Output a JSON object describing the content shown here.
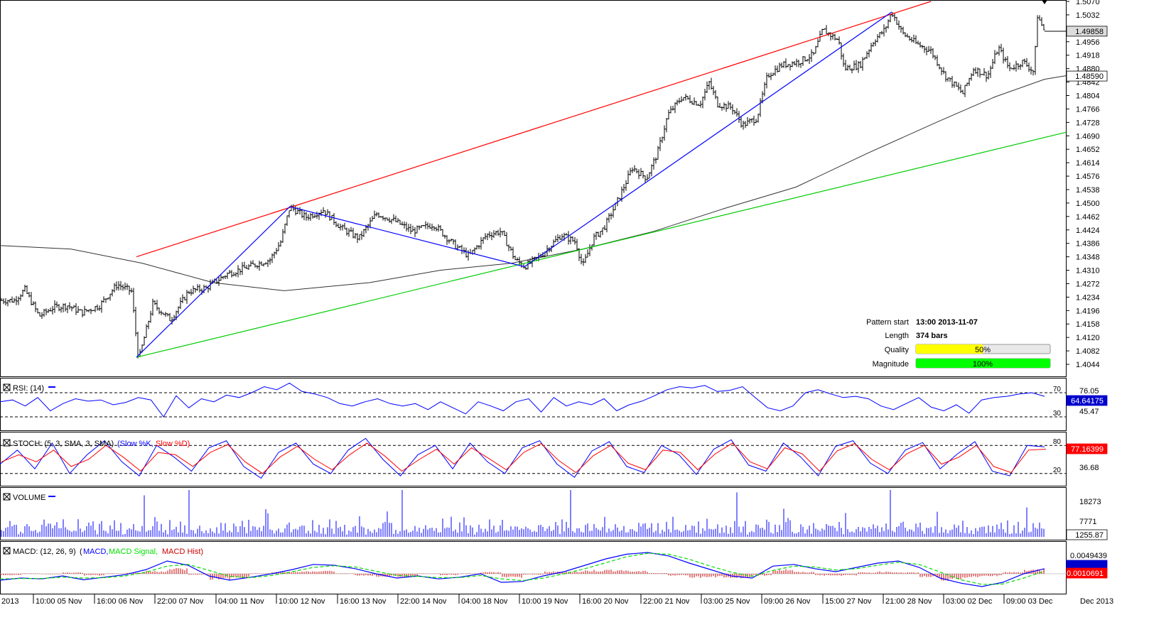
{
  "chart_data": [
    {
      "panel": "price",
      "type": "candlestick",
      "ylim": [
        1.403,
        1.507
      ],
      "y_ticks": [
        "1.5070",
        "1.5032",
        "1.4956",
        "1.4918",
        "1.4880",
        "1.4842",
        "1.4804",
        "1.4766",
        "1.4728",
        "1.4690",
        "1.4652",
        "1.4614",
        "1.4576",
        "1.4538",
        "1.4500",
        "1.4462",
        "1.4424",
        "1.4386",
        "1.4348",
        "1.4310",
        "1.4272",
        "1.4234",
        "1.4196",
        "1.4158",
        "1.4120",
        "1.4082",
        "1.4044"
      ],
      "x_labels": [
        "2013",
        "10:00 05 Nov",
        "16:00 06 Nov",
        "22:00 07 Nov",
        "04:00 11 Nov",
        "10:00 12 Nov",
        "16:00 13 Nov",
        "22:00 14 Nov",
        "04:00 18 Nov",
        "10:00 19 Nov",
        "16:00 20 Nov",
        "22:00 21 Nov",
        "03:00 25 Nov",
        "09:00 26 Nov",
        "15:00 27 Nov",
        "21:00 28 Nov",
        "03:00 02 Dec",
        "09:00 03 Dec",
        "Dec 2013"
      ],
      "price_path": [
        [
          0,
          1.4225
        ],
        [
          20,
          1.4225
        ],
        [
          35,
          1.4255
        ],
        [
          55,
          1.418
        ],
        [
          75,
          1.4205
        ],
        [
          95,
          1.421
        ],
        [
          115,
          1.419
        ],
        [
          140,
          1.421
        ],
        [
          165,
          1.427
        ],
        [
          185,
          1.425
        ],
        [
          195,
          1.4055
        ],
        [
          215,
          1.4215
        ],
        [
          240,
          1.417
        ],
        [
          265,
          1.425
        ],
        [
          290,
          1.426
        ],
        [
          320,
          1.43
        ],
        [
          350,
          1.432
        ],
        [
          380,
          1.434
        ],
        [
          395,
          1.439
        ],
        [
          408,
          1.449
        ],
        [
          430,
          1.446
        ],
        [
          455,
          1.448
        ],
        [
          480,
          1.443
        ],
        [
          505,
          1.44
        ],
        [
          530,
          1.447
        ],
        [
          555,
          1.445
        ],
        [
          580,
          1.442
        ],
        [
          610,
          1.444
        ],
        [
          640,
          1.438
        ],
        [
          660,
          1.435
        ],
        [
          685,
          1.441
        ],
        [
          705,
          1.442
        ],
        [
          725,
          1.434
        ],
        [
          738,
          1.432
        ],
        [
          760,
          1.435
        ],
        [
          790,
          1.441
        ],
        [
          810,
          1.439
        ],
        [
          820,
          1.432
        ],
        [
          835,
          1.44
        ],
        [
          850,
          1.443
        ],
        [
          870,
          1.451
        ],
        [
          890,
          1.46
        ],
        [
          910,
          1.457
        ],
        [
          925,
          1.464
        ],
        [
          940,
          1.475
        ],
        [
          960,
          1.48
        ],
        [
          985,
          1.478
        ],
        [
          998,
          1.484
        ],
        [
          1010,
          1.478
        ],
        [
          1030,
          1.477
        ],
        [
          1045,
          1.472
        ],
        [
          1065,
          1.474
        ],
        [
          1080,
          1.486
        ],
        [
          1100,
          1.489
        ],
        [
          1125,
          1.49
        ],
        [
          1145,
          1.492
        ],
        [
          1158,
          1.499
        ],
        [
          1180,
          1.496
        ],
        [
          1188,
          1.488
        ],
        [
          1210,
          1.489
        ],
        [
          1230,
          1.496
        ],
        [
          1245,
          1.499
        ],
        [
          1255,
          1.504
        ],
        [
          1270,
          1.498
        ],
        [
          1290,
          1.495
        ],
        [
          1310,
          1.493
        ],
        [
          1330,
          1.486
        ],
        [
          1355,
          1.481
        ],
        [
          1370,
          1.488
        ],
        [
          1390,
          1.486
        ],
        [
          1405,
          1.494
        ],
        [
          1420,
          1.488
        ],
        [
          1440,
          1.49
        ],
        [
          1455,
          1.487
        ],
        [
          1460,
          1.503
        ],
        [
          1470,
          1.4986
        ]
      ],
      "moving_average": [
        [
          0,
          1.438
        ],
        [
          100,
          1.437
        ],
        [
          200,
          1.433
        ],
        [
          300,
          1.4275
        ],
        [
          400,
          1.4252
        ],
        [
          520,
          1.4275
        ],
        [
          620,
          1.431
        ],
        [
          720,
          1.433
        ],
        [
          820,
          1.437
        ],
        [
          920,
          1.442
        ],
        [
          1020,
          1.4485
        ],
        [
          1120,
          1.4545
        ],
        [
          1220,
          1.464
        ],
        [
          1320,
          1.473
        ],
        [
          1400,
          1.48
        ],
        [
          1470,
          1.485
        ],
        [
          1500,
          1.486
        ]
      ],
      "trendlines": [
        {
          "color": "#ff0000",
          "points": [
            [
              192,
              1.4348
            ],
            [
              1310,
              1.507
            ]
          ]
        },
        {
          "color": "#00cc00",
          "points": [
            [
              192,
              1.4064
            ],
            [
              1500,
              1.47
            ]
          ]
        },
        {
          "color": "#0000ff",
          "points": [
            [
              192,
              1.4064
            ],
            [
              408,
              1.449
            ],
            [
              738,
              1.432
            ],
            [
              1255,
              1.504
            ]
          ]
        }
      ],
      "price_tags": [
        {
          "label": "1.49858",
          "value": 1.49858
        },
        {
          "label": "1.48590",
          "value": 1.4859
        }
      ],
      "pattern_info": {
        "rows": [
          {
            "label": "Pattern start",
            "value": "13:00 2013-11-07"
          },
          {
            "label": "Length",
            "value": "374 bars"
          },
          {
            "label": "Quality",
            "value": "50%",
            "fraction": 0.5,
            "color": "#ffff00"
          },
          {
            "label": "Magnitude",
            "value": "100%",
            "fraction": 1.0,
            "color": "#00ff00"
          }
        ]
      }
    },
    {
      "panel": "rsi",
      "type": "line",
      "title": "RSI: (14)",
      "ylim": [
        10,
        90
      ],
      "levels": [
        "70",
        "30"
      ],
      "y_ticks": [
        "76.05",
        "45.47"
      ],
      "tag": "64.64175",
      "series": [
        {
          "color": "#0000ff",
          "values": [
            55,
            58,
            48,
            62,
            40,
            52,
            60,
            56,
            58,
            50,
            54,
            62,
            58,
            30,
            65,
            45,
            60,
            55,
            66,
            62,
            70,
            80,
            75,
            86,
            72,
            68,
            62,
            52,
            48,
            55,
            60,
            52,
            48,
            52,
            42,
            55,
            45,
            35,
            55,
            48,
            40,
            55,
            60,
            38,
            62,
            48,
            55,
            50,
            60,
            40,
            50,
            56,
            65,
            75,
            80,
            78,
            82,
            72,
            74,
            80,
            62,
            45,
            40,
            48,
            70,
            75,
            68,
            62,
            64,
            60,
            48,
            42,
            52,
            62,
            46,
            40,
            50,
            36,
            58,
            62,
            64,
            68,
            70,
            64
          ]
        }
      ]
    },
    {
      "panel": "stoch",
      "type": "line",
      "title": "STOCH: (5, 3, SMA, 3, SMA)",
      "legend": [
        "Slow %K",
        "Slow %D"
      ],
      "ylim": [
        0,
        100
      ],
      "levels": [
        "80",
        "20"
      ],
      "y_ticks": [
        "36.68"
      ],
      "tag": "77.16399",
      "series": [
        {
          "name": "Slow %K",
          "color": "#0000ff",
          "values": [
            40,
            70,
            30,
            85,
            20,
            60,
            90,
            45,
            15,
            80,
            55,
            25,
            75,
            90,
            35,
            10,
            65,
            85,
            40,
            20,
            70,
            95,
            50,
            15,
            60,
            80,
            30,
            85,
            45,
            20,
            75,
            90,
            40,
            12,
            68,
            88,
            35,
            22,
            80,
            60,
            18,
            72,
            92,
            38,
            25,
            85,
            55,
            15,
            78,
            90,
            42,
            20,
            70,
            86,
            30,
            62,
            88,
            25,
            15,
            80,
            77
          ]
        },
        {
          "name": "Slow %D",
          "color": "#ff0000",
          "values": [
            45,
            60,
            45,
            70,
            35,
            50,
            80,
            55,
            25,
            65,
            60,
            35,
            65,
            82,
            45,
            20,
            55,
            78,
            50,
            28,
            60,
            85,
            58,
            25,
            50,
            72,
            40,
            75,
            52,
            28,
            65,
            84,
            48,
            22,
            58,
            80,
            42,
            28,
            70,
            65,
            28,
            62,
            85,
            45,
            30,
            75,
            62,
            25,
            68,
            84,
            50,
            28,
            62,
            80,
            40,
            55,
            80,
            35,
            22,
            70,
            72
          ]
        }
      ]
    },
    {
      "panel": "volume",
      "type": "bar",
      "title": "VOLUME",
      "y_ticks": [
        "18273",
        "7771"
      ],
      "tag": "1255.87",
      "series": [
        {
          "color": "#0000ff",
          "values": [
            3200,
            5100,
            2700,
            8200,
            4100,
            6800,
            3900,
            9300,
            2900,
            5400,
            4400,
            7300,
            3600,
            6100,
            4900,
            8600,
            3100,
            5800,
            4200,
            24000,
            6400,
            3300,
            7700,
            5100,
            4600,
            12500,
            4300,
            3700,
            6900,
            9700,
            5200,
            3600,
            7100,
            4800,
            8900,
            3200,
            5600,
            6200,
            2800,
            7400,
            4700,
            9100,
            3800,
            6600,
            5300,
            8100,
            3400,
            6000,
            4500,
            7800
          ]
        }
      ]
    },
    {
      "panel": "macd",
      "type": "line",
      "title": "MACD: (12, 26, 9)",
      "legend": [
        "MACD",
        "MACD Signal",
        "MACD Hist"
      ],
      "y_ticks": [
        "0.0049439"
      ],
      "tag": "0.0010691",
      "series": [
        {
          "name": "MACD",
          "color": "#0000ff",
          "values": [
            -0.0015,
            -0.001,
            -0.0012,
            -0.0005,
            -0.0014,
            -0.0008,
            -0.0002,
            0.001,
            0.003,
            0.002,
            -0.0005,
            -0.0015,
            -0.0008,
            0.0,
            0.001,
            0.0022,
            0.002,
            0.0012,
            0.0,
            -0.001,
            -0.0005,
            -0.0012,
            -0.0008,
            0.0,
            -0.002,
            -0.0018,
            -0.0005,
            0.0005,
            0.002,
            0.0035,
            0.0046,
            0.005,
            0.0042,
            0.0025,
            0.001,
            -0.0005,
            -0.001,
            0.0018,
            0.0022,
            0.0012,
            0.0005,
            0.0015,
            0.0025,
            0.003,
            0.0015,
            -0.001,
            -0.0022,
            -0.003,
            -0.002,
            0.0,
            0.0012
          ]
        },
        {
          "name": "MACD Signal",
          "color": "#00dd00",
          "values": [
            -0.0012,
            -0.0011,
            -0.0011,
            -0.0008,
            -0.001,
            -0.0009,
            -0.0005,
            0.0004,
            0.0018,
            0.0022,
            0.0008,
            -0.0006,
            -0.0009,
            -0.0004,
            0.0005,
            0.0015,
            0.0019,
            0.0016,
            0.0006,
            -0.0004,
            -0.0006,
            -0.0009,
            -0.0009,
            -0.0004,
            -0.0012,
            -0.0016,
            -0.001,
            0.0,
            0.0012,
            0.0026,
            0.004,
            0.0048,
            0.0046,
            0.0034,
            0.0018,
            0.0004,
            -0.0006,
            0.0008,
            0.0018,
            0.0016,
            0.0009,
            0.0012,
            0.002,
            0.0027,
            0.0022,
            0.0004,
            -0.0014,
            -0.0025,
            -0.0024,
            -0.001,
            0.0006
          ]
        },
        {
          "name": "MACD Hist",
          "color": "#cc0000",
          "values": [
            -0.0003,
            0.0001,
            -0.0001,
            0.0003,
            -0.0004,
            0.0001,
            0.0003,
            0.0006,
            0.0012,
            -0.0002,
            -0.0013,
            -0.0009,
            0.0001,
            0.0004,
            0.0005,
            0.0007,
            0.0001,
            -0.0004,
            -0.0006,
            -0.0006,
            0.0001,
            -0.0003,
            0.0001,
            0.0004,
            -0.0008,
            -0.0002,
            0.0005,
            0.0005,
            0.0008,
            0.0009,
            0.0006,
            0.0002,
            -0.0004,
            -0.0009,
            -0.0008,
            -0.0009,
            -0.0004,
            0.001,
            0.0004,
            -0.0004,
            -0.0004,
            0.0003,
            0.0005,
            0.0003,
            -0.0007,
            -0.0014,
            -0.0008,
            -0.0005,
            0.0004,
            0.001,
            0.0006
          ]
        }
      ]
    }
  ]
}
